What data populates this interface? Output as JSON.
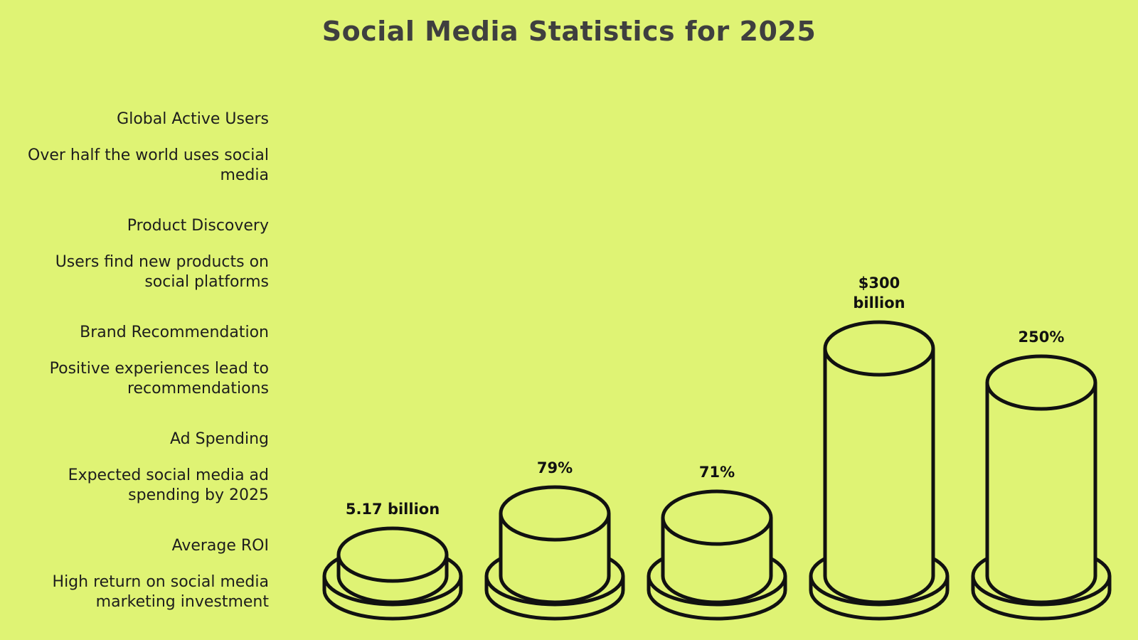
{
  "page": {
    "title": "Social Media Statistics for 2025",
    "background": "#dff374",
    "ink": "#111111"
  },
  "legend": [
    {
      "label": "Global Active Users",
      "description": "Over half the world uses social media"
    },
    {
      "label": "Product Discovery",
      "description": "Users find new products on social platforms"
    },
    {
      "label": "Brand Recommendation",
      "description": "Positive experiences lead to recommendations"
    },
    {
      "label": "Ad Spending",
      "description": "Expected social media ad spending by 2025"
    },
    {
      "label": "Average ROI",
      "description": "High return on social media marketing investment"
    }
  ],
  "chart_data": {
    "type": "bar",
    "title": "Social Media Statistics for 2025",
    "categories": [
      "Global Active Users",
      "Product Discovery",
      "Brand Recommendation",
      "Ad Spending",
      "Average ROI"
    ],
    "value_labels": [
      "5.17 billion",
      "79%",
      "71%",
      "$300 billion",
      "250%"
    ],
    "values": [
      5.17,
      79,
      71,
      300,
      250
    ],
    "units": [
      "billion",
      "%",
      "%",
      "$ billion",
      "%"
    ],
    "legend_position": "left",
    "grid": false
  }
}
